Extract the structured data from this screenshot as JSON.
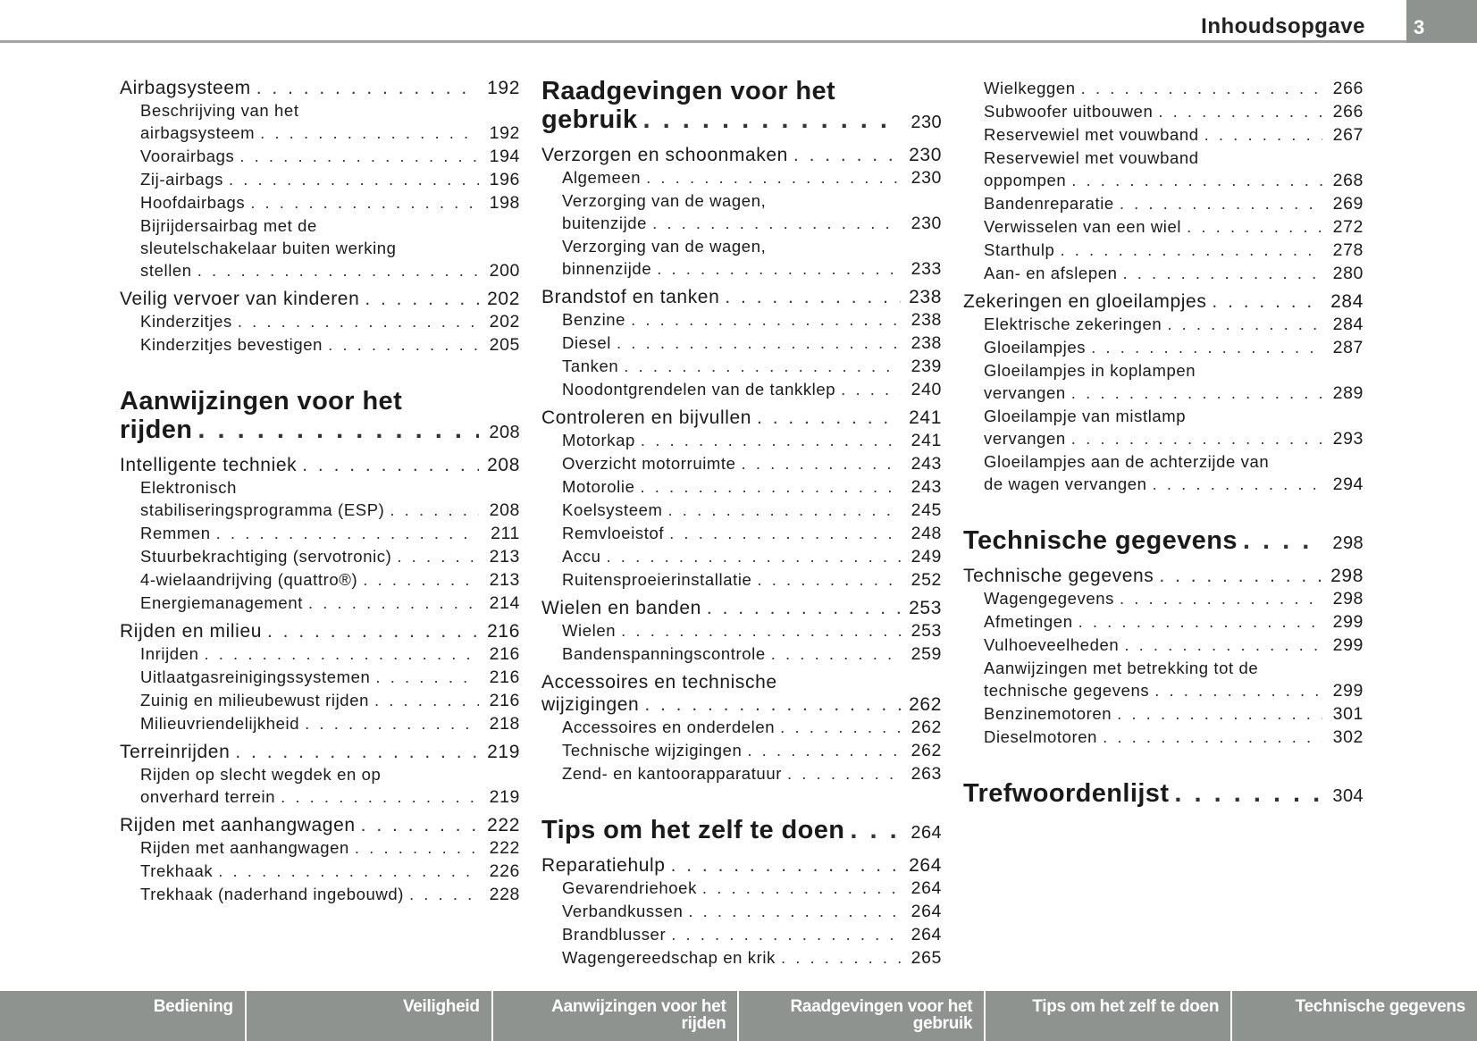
{
  "header": {
    "title": "Inhoudsopgave",
    "page": "3"
  },
  "columns": [
    [
      {
        "k": "m",
        "lines": [
          "Airbagsysteem"
        ],
        "p": "192"
      },
      {
        "k": "s",
        "lines": [
          "Beschrijving van het",
          "airbagsysteem"
        ],
        "p": "192"
      },
      {
        "k": "s",
        "lines": [
          "Voorairbags"
        ],
        "p": "194"
      },
      {
        "k": "s",
        "lines": [
          "Zij-airbags"
        ],
        "p": "196"
      },
      {
        "k": "s",
        "lines": [
          "Hoofdairbags"
        ],
        "p": "198"
      },
      {
        "k": "s",
        "lines": [
          "Bijrijdersairbag met de",
          "sleutelschakelaar buiten werking",
          "stellen"
        ],
        "p": "200"
      },
      {
        "k": "m",
        "lines": [
          "Veilig vervoer van kinderen"
        ],
        "p": "202"
      },
      {
        "k": "s",
        "lines": [
          "Kinderzitjes"
        ],
        "p": "202"
      },
      {
        "k": "s",
        "lines": [
          "Kinderzitjes bevestigen"
        ],
        "p": "205"
      },
      {
        "k": "h",
        "lines": [
          "Aanwijzingen voor het",
          "rijden"
        ],
        "p": "208"
      },
      {
        "k": "m",
        "lines": [
          "Intelligente techniek"
        ],
        "p": "208"
      },
      {
        "k": "s",
        "lines": [
          "Elektronisch",
          "stabiliseringsprogramma (ESP)"
        ],
        "p": "208"
      },
      {
        "k": "s",
        "lines": [
          "Remmen"
        ],
        "p": "211"
      },
      {
        "k": "s",
        "lines": [
          "Stuurbekrachtiging (servotronic)"
        ],
        "p": "213"
      },
      {
        "k": "s",
        "lines": [
          "4-wielaandrijving (quattro®)"
        ],
        "p": "213"
      },
      {
        "k": "s",
        "lines": [
          "Energiemanagement"
        ],
        "p": "214"
      },
      {
        "k": "m",
        "lines": [
          "Rijden en milieu"
        ],
        "p": "216"
      },
      {
        "k": "s",
        "lines": [
          "Inrijden"
        ],
        "p": "216"
      },
      {
        "k": "s",
        "lines": [
          "Uitlaatgasreinigingssystemen"
        ],
        "p": "216"
      },
      {
        "k": "s",
        "lines": [
          "Zuinig en milieubewust rijden"
        ],
        "p": "216"
      },
      {
        "k": "s",
        "lines": [
          "Milieuvriendelijkheid"
        ],
        "p": "218"
      },
      {
        "k": "m",
        "lines": [
          "Terreinrijden"
        ],
        "p": "219"
      },
      {
        "k": "s",
        "lines": [
          "Rijden op slecht wegdek en op",
          "onverhard terrein"
        ],
        "p": "219"
      },
      {
        "k": "m",
        "lines": [
          "Rijden met aanhangwagen"
        ],
        "p": "222"
      },
      {
        "k": "s",
        "lines": [
          "Rijden met aanhangwagen"
        ],
        "p": "222"
      },
      {
        "k": "s",
        "lines": [
          "Trekhaak"
        ],
        "p": "226"
      },
      {
        "k": "s",
        "lines": [
          "Trekhaak (naderhand ingebouwd)"
        ],
        "p": "228"
      }
    ],
    [
      {
        "k": "h",
        "lines": [
          "Raadgevingen voor het",
          "gebruik"
        ],
        "p": "230"
      },
      {
        "k": "m",
        "lines": [
          "Verzorgen en schoonmaken"
        ],
        "p": "230"
      },
      {
        "k": "s",
        "lines": [
          "Algemeen"
        ],
        "p": "230"
      },
      {
        "k": "s",
        "lines": [
          "Verzorging van de wagen,",
          "buitenzijde"
        ],
        "p": "230"
      },
      {
        "k": "s",
        "lines": [
          "Verzorging van de wagen,",
          "binnenzijde"
        ],
        "p": "233"
      },
      {
        "k": "m",
        "lines": [
          "Brandstof en tanken"
        ],
        "p": "238"
      },
      {
        "k": "s",
        "lines": [
          "Benzine"
        ],
        "p": "238"
      },
      {
        "k": "s",
        "lines": [
          "Diesel"
        ],
        "p": "238"
      },
      {
        "k": "s",
        "lines": [
          "Tanken"
        ],
        "p": "239"
      },
      {
        "k": "s",
        "lines": [
          "Noodontgrendelen van de tankklep"
        ],
        "p": "240"
      },
      {
        "k": "m",
        "lines": [
          "Controleren en bijvullen"
        ],
        "p": "241"
      },
      {
        "k": "s",
        "lines": [
          "Motorkap"
        ],
        "p": "241"
      },
      {
        "k": "s",
        "lines": [
          "Overzicht motorruimte"
        ],
        "p": "243"
      },
      {
        "k": "s",
        "lines": [
          "Motorolie"
        ],
        "p": "243"
      },
      {
        "k": "s",
        "lines": [
          "Koelsysteem"
        ],
        "p": "245"
      },
      {
        "k": "s",
        "lines": [
          "Remvloeistof"
        ],
        "p": "248"
      },
      {
        "k": "s",
        "lines": [
          "Accu"
        ],
        "p": "249"
      },
      {
        "k": "s",
        "lines": [
          "Ruitensproeierinstallatie"
        ],
        "p": "252"
      },
      {
        "k": "m",
        "lines": [
          "Wielen en banden"
        ],
        "p": "253"
      },
      {
        "k": "s",
        "lines": [
          "Wielen"
        ],
        "p": "253"
      },
      {
        "k": "s",
        "lines": [
          "Bandenspanningscontrole"
        ],
        "p": "259"
      },
      {
        "k": "m",
        "lines": [
          "Accessoires en technische",
          "wijzigingen"
        ],
        "p": "262"
      },
      {
        "k": "s",
        "lines": [
          "Accessoires en onderdelen"
        ],
        "p": "262"
      },
      {
        "k": "s",
        "lines": [
          "Technische wijzigingen"
        ],
        "p": "262"
      },
      {
        "k": "s",
        "lines": [
          "Zend- en kantoorapparatuur"
        ],
        "p": "263"
      },
      {
        "k": "h",
        "lines": [
          "Tips om het zelf te doen"
        ],
        "p": "264"
      },
      {
        "k": "m",
        "lines": [
          "Reparatiehulp"
        ],
        "p": "264"
      },
      {
        "k": "s",
        "lines": [
          "Gevarendriehoek"
        ],
        "p": "264"
      },
      {
        "k": "s",
        "lines": [
          "Verbandkussen"
        ],
        "p": "264"
      },
      {
        "k": "s",
        "lines": [
          "Brandblusser"
        ],
        "p": "264"
      },
      {
        "k": "s",
        "lines": [
          "Wagengereedschap en krik"
        ],
        "p": "265"
      }
    ],
    [
      {
        "k": "s",
        "lines": [
          "Wielkeggen"
        ],
        "p": "266"
      },
      {
        "k": "s",
        "lines": [
          "Subwoofer uitbouwen"
        ],
        "p": "266"
      },
      {
        "k": "s",
        "lines": [
          "Reservewiel met vouwband"
        ],
        "p": "267"
      },
      {
        "k": "s",
        "lines": [
          "Reservewiel met vouwband",
          "oppompen"
        ],
        "p": "268"
      },
      {
        "k": "s",
        "lines": [
          "Bandenreparatie"
        ],
        "p": "269"
      },
      {
        "k": "s",
        "lines": [
          "Verwisselen van een wiel"
        ],
        "p": "272"
      },
      {
        "k": "s",
        "lines": [
          "Starthulp"
        ],
        "p": "278"
      },
      {
        "k": "s",
        "lines": [
          "Aan- en afslepen"
        ],
        "p": "280"
      },
      {
        "k": "m",
        "lines": [
          "Zekeringen en gloeilampjes"
        ],
        "p": "284"
      },
      {
        "k": "s",
        "lines": [
          "Elektrische zekeringen"
        ],
        "p": "284"
      },
      {
        "k": "s",
        "lines": [
          "Gloeilampjes"
        ],
        "p": "287"
      },
      {
        "k": "s",
        "lines": [
          "Gloeilampjes in koplampen",
          "vervangen"
        ],
        "p": "289"
      },
      {
        "k": "s",
        "lines": [
          "Gloeilampje van mistlamp",
          "vervangen"
        ],
        "p": "293"
      },
      {
        "k": "s",
        "lines": [
          "Gloeilampjes aan de achterzijde van",
          "de wagen vervangen"
        ],
        "p": "294"
      },
      {
        "k": "h",
        "lines": [
          "Technische gegevens"
        ],
        "p": "298"
      },
      {
        "k": "m",
        "lines": [
          "Technische gegevens"
        ],
        "p": "298"
      },
      {
        "k": "s",
        "lines": [
          "Wagengegevens"
        ],
        "p": "298"
      },
      {
        "k": "s",
        "lines": [
          "Afmetingen"
        ],
        "p": "299"
      },
      {
        "k": "s",
        "lines": [
          "Vulhoeveelheden"
        ],
        "p": "299"
      },
      {
        "k": "s",
        "lines": [
          "Aanwijzingen met betrekking tot de",
          "technische gegevens"
        ],
        "p": "299"
      },
      {
        "k": "s",
        "lines": [
          "Benzinemotoren"
        ],
        "p": "301"
      },
      {
        "k": "s",
        "lines": [
          "Dieselmotoren"
        ],
        "p": "302"
      },
      {
        "k": "h",
        "lines": [
          "Trefwoordenlijst"
        ],
        "p": "304"
      }
    ]
  ],
  "footer_tabs": [
    {
      "lines": [
        "Bediening"
      ]
    },
    {
      "lines": [
        "Veiligheid"
      ]
    },
    {
      "lines": [
        "Aanwijzingen voor het",
        "rijden"
      ]
    },
    {
      "lines": [
        "Raadgevingen voor het",
        "gebruik"
      ]
    },
    {
      "lines": [
        "Tips om het zelf te doen"
      ]
    },
    {
      "lines": [
        "Technische gegevens"
      ]
    }
  ],
  "colors": {
    "accent_gray": "#8f9390",
    "text": "#1a1a1a"
  }
}
